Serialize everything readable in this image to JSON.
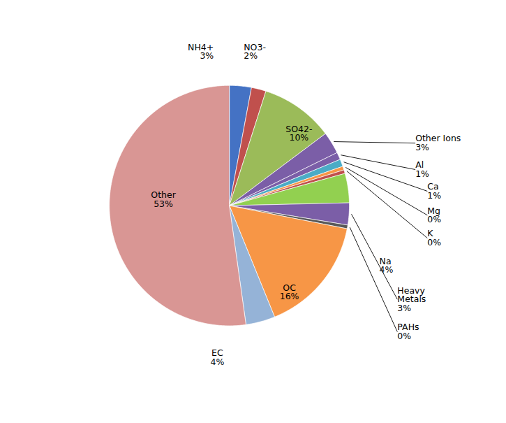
{
  "chart_data": {
    "type": "pie",
    "categories": [
      "NH4+",
      "NO3-",
      "SO42-",
      "Other Ions",
      "Al",
      "Ca",
      "Mg",
      "K",
      "Na",
      "Heavy\nMetals",
      "PAHs",
      "OC",
      "EC",
      "Other"
    ],
    "values": [
      3,
      2,
      10,
      3,
      1,
      1,
      0.5,
      0.5,
      4,
      3,
      0.5,
      16,
      4,
      53
    ],
    "value_labels": [
      "3%",
      "2%",
      "10%",
      "3%",
      "1%",
      "1%",
      "0%",
      "0%",
      "4%",
      "3%",
      "0%",
      "16%",
      "4%",
      "53%"
    ],
    "colors": [
      "#4472C4",
      "#C0504D",
      "#9BBB59",
      "#7B5EA7",
      "#7B5EA7",
      "#4BACC6",
      "#F79646",
      "#C0504D",
      "#92D050",
      "#7B5EA7",
      "#595959",
      "#F79646",
      "#95B3D7",
      "#D99694"
    ],
    "data_labels": true
  }
}
